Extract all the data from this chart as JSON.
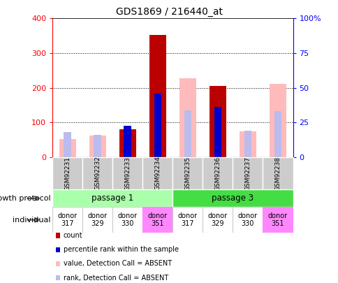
{
  "title": "GDS1869 / 216440_at",
  "samples": [
    "GSM92231",
    "GSM92232",
    "GSM92233",
    "GSM92234",
    "GSM92235",
    "GSM92236",
    "GSM92237",
    "GSM92238"
  ],
  "count": [
    0,
    0,
    80,
    352,
    0,
    205,
    0,
    0
  ],
  "percentile_rank": [
    0,
    0,
    90,
    183,
    0,
    145,
    0,
    0
  ],
  "absent_value": [
    52,
    63,
    0,
    0,
    228,
    0,
    75,
    212
  ],
  "absent_rank": [
    72,
    65,
    0,
    0,
    135,
    0,
    77,
    133
  ],
  "ylim_left": [
    0,
    400
  ],
  "yticks_left": [
    0,
    100,
    200,
    300,
    400
  ],
  "yticklabels_left": [
    "0",
    "100",
    "200",
    "300",
    "400"
  ],
  "yticks_right": [
    0,
    25,
    50,
    75,
    100
  ],
  "yticklabels_right": [
    "0",
    "25",
    "50",
    "75",
    "100%"
  ],
  "color_count": "#bb0000",
  "color_rank": "#0000cc",
  "color_absent_value": "#ffbbbb",
  "color_absent_rank": "#bbbbee",
  "passage1_label": "passage 1",
  "passage3_label": "passage 3",
  "passage1_color": "#aaffaa",
  "passage3_color": "#44dd44",
  "individuals": [
    "donor\n317",
    "donor\n329",
    "donor\n330",
    "donor\n351",
    "donor\n317",
    "donor\n329",
    "donor\n330",
    "donor\n351"
  ],
  "individual_colors": [
    "#ffffff",
    "#ffffff",
    "#ffffff",
    "#ff88ff",
    "#ffffff",
    "#ffffff",
    "#ffffff",
    "#ff88ff"
  ],
  "individual_border_colors": [
    "#cccccc",
    "#cccccc",
    "#cccccc",
    "#ff88ff",
    "#cccccc",
    "#cccccc",
    "#cccccc",
    "#ff88ff"
  ],
  "growth_protocol_label": "growth protocol",
  "individual_label": "individual",
  "legend_items": [
    {
      "label": "count",
      "color": "#bb0000"
    },
    {
      "label": "percentile rank within the sample",
      "color": "#0000cc"
    },
    {
      "label": "value, Detection Call = ABSENT",
      "color": "#ffbbbb"
    },
    {
      "label": "rank, Detection Call = ABSENT",
      "color": "#bbbbee"
    }
  ],
  "bar_width": 0.55
}
